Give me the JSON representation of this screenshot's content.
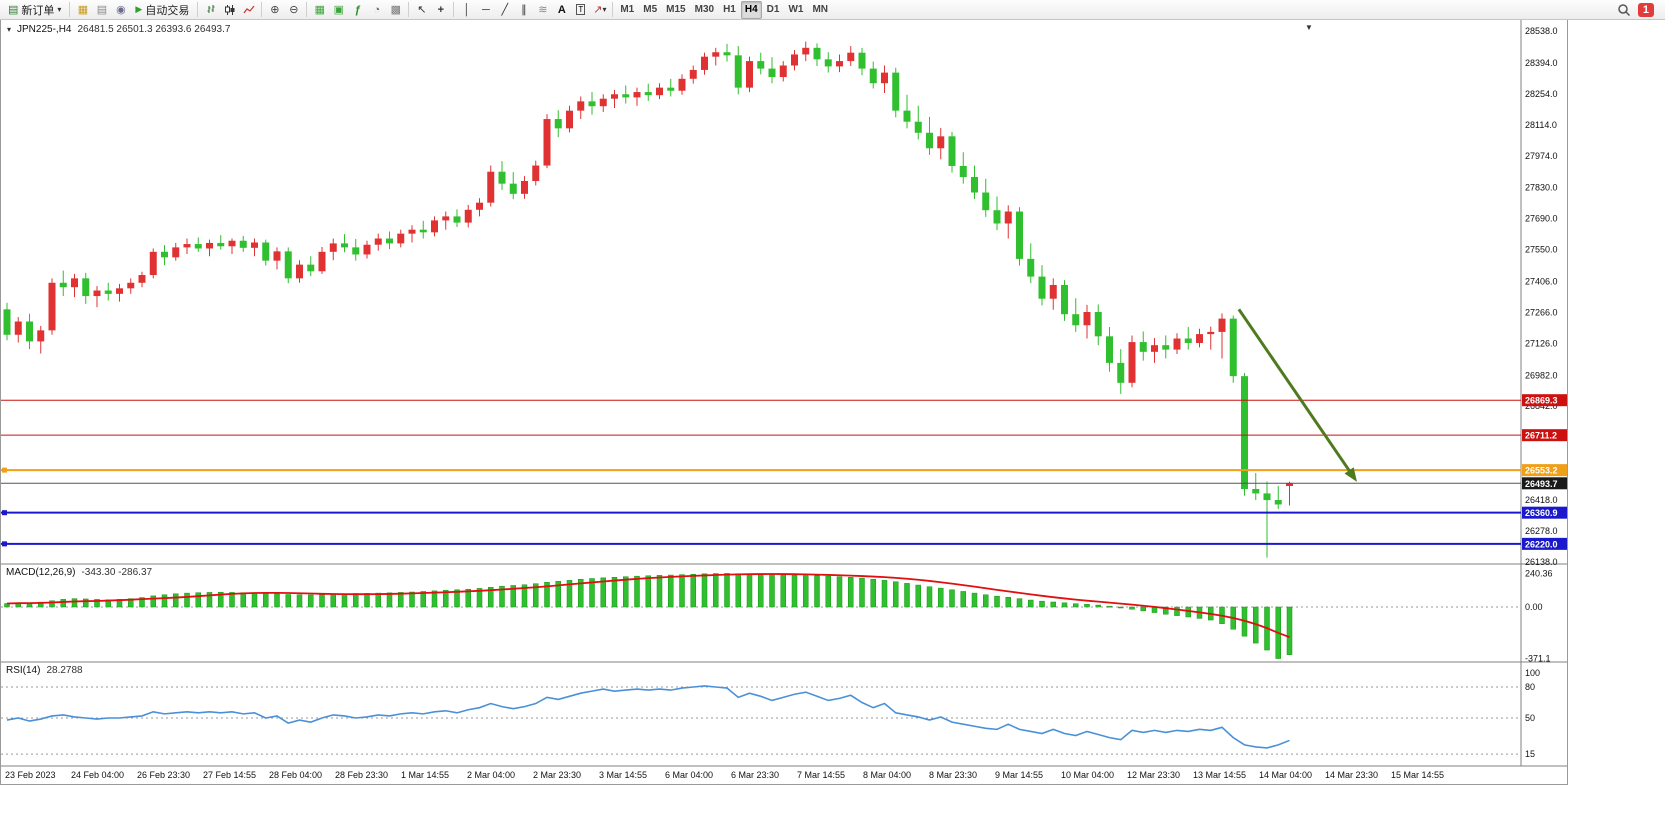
{
  "toolbar": {
    "new_order_label": "新订单",
    "autotrade_label": "自动交易",
    "timeframes": [
      "M1",
      "M5",
      "M15",
      "M30",
      "H1",
      "H4",
      "D1",
      "W1",
      "MN"
    ],
    "active_timeframe": "H4",
    "notification_count": "1"
  },
  "icons": {
    "symbol_menu": "▾",
    "chevron_down": "▾",
    "new_order": "▤",
    "charts_grid": "▦",
    "printer": "▤",
    "community": "◉",
    "autotrade_play": "▶",
    "zoom_in": "⊕",
    "zoom_out": "⊖",
    "arrange_windows": "▦",
    "tile_windows": "▣",
    "indicators": "ƒ",
    "periods": "◔",
    "template": "▩",
    "cursor": "↖",
    "crosshair": "+",
    "vline": "│",
    "hline": "─",
    "trendline": "╱",
    "channel": "∥",
    "fibonacci": "≋",
    "text": "A",
    "text_label": "T",
    "arrows_tool": "↗",
    "shift_marker": "▼"
  },
  "chart": {
    "title": "JPN225-,H4",
    "ohlc_text": "26481.5 26501.3 26393.6 26493.7",
    "macd_label": "MACD(12,26,9)",
    "macd_values_text": "-343.30 -286.37",
    "rsi_label": "RSI(14)",
    "rsi_value_text": "28.2788",
    "price_tags": [
      {
        "text": "26869.3",
        "price": 26869.3,
        "bg": "#cc1111"
      },
      {
        "text": "26711.2",
        "price": 26711.2,
        "bg": "#cc1111"
      },
      {
        "text": "26553.2",
        "price": 26553.2,
        "bg": "#efa018"
      },
      {
        "text": "26493.7",
        "price": 26493.7,
        "bg": "#1a1a1a"
      },
      {
        "text": "26360.9",
        "price": 26360.9,
        "bg": "#1a1acc"
      },
      {
        "text": "26220.0",
        "price": 26220.0,
        "bg": "#1a1acc"
      }
    ],
    "horizontal_lines": [
      {
        "price": 26869.3,
        "color": "#cc1111",
        "width": 1
      },
      {
        "price": 26711.2,
        "color": "#cc1111",
        "width": 1
      },
      {
        "price": 26553.2,
        "color": "#efa018",
        "width": 2
      },
      {
        "price": 26493.7,
        "color": "#555555",
        "width": 1
      },
      {
        "price": 26360.9,
        "color": "#1a1acc",
        "width": 2
      },
      {
        "price": 26220.0,
        "color": "#1a1acc",
        "width": 2
      }
    ],
    "macd_axis_labels": [
      {
        "text": "240.36",
        "value": 240.36
      },
      {
        "text": "0.00",
        "value": 0
      },
      {
        "text": "-371.1",
        "value": -371.1
      }
    ],
    "rsi_axis_labels": [
      {
        "text": "100",
        "value": 100
      },
      {
        "text": "80",
        "value": 80
      },
      {
        "text": "50",
        "value": 50
      },
      {
        "text": "15",
        "value": 15
      }
    ],
    "arrow": {
      "from": {
        "index": 109.5,
        "price": 27280
      },
      "to": {
        "index": 120,
        "price": 26500
      },
      "color": "#4f7a1f"
    },
    "colors": {
      "bull": "#e03232",
      "bear": "#2fbf2f",
      "macd_signal": "#e01010",
      "rsi": "#4a90d9"
    }
  },
  "chart_data": [
    {
      "type": "candlestick",
      "symbol": "JPN225-",
      "timeframe": "H4",
      "current_bar": {
        "open": 26481.5,
        "high": 26501.3,
        "low": 26393.6,
        "close": 26493.7
      },
      "ylim": [
        26138,
        28538
      ],
      "y_ticks": [
        "28538.0",
        "28394.0",
        "28254.0",
        "28114.0",
        "27974.0",
        "27830.0",
        "27690.0",
        "27550.0",
        "27406.0",
        "27266.0",
        "27126.0",
        "26982.0",
        "26842.0",
        "26418.0",
        "26278.0",
        "26138.0"
      ],
      "x_labels": [
        "23 Feb 2023",
        "24 Feb 04:00",
        "26 Feb 23:30",
        "27 Feb 14:55",
        "28 Feb 04:00",
        "28 Feb 23:30",
        "1 Mar 14:55",
        "2 Mar 04:00",
        "2 Mar 23:30",
        "3 Mar 14:55",
        "6 Mar 04:00",
        "6 Mar 23:30",
        "7 Mar 14:55",
        "8 Mar 04:00",
        "8 Mar 23:30",
        "9 Mar 14:55",
        "10 Mar 04:00",
        "12 Mar 23:30",
        "13 Mar 14:55",
        "14 Mar 04:00",
        "14 Mar 23:30",
        "15 Mar 14:55"
      ],
      "ohlc": [
        [
          27280,
          27310,
          27140,
          27165
        ],
        [
          27165,
          27245,
          27130,
          27225
        ],
        [
          27225,
          27260,
          27100,
          27135
        ],
        [
          27135,
          27205,
          27080,
          27185
        ],
        [
          27185,
          27420,
          27165,
          27400
        ],
        [
          27400,
          27455,
          27340,
          27380
        ],
        [
          27380,
          27440,
          27335,
          27420
        ],
        [
          27420,
          27445,
          27305,
          27340
        ],
        [
          27340,
          27385,
          27290,
          27365
        ],
        [
          27365,
          27400,
          27320,
          27350
        ],
        [
          27350,
          27395,
          27315,
          27375
        ],
        [
          27375,
          27420,
          27350,
          27400
        ],
        [
          27400,
          27450,
          27380,
          27435
        ],
        [
          27435,
          27555,
          27420,
          27540
        ],
        [
          27540,
          27570,
          27480,
          27515
        ],
        [
          27515,
          27580,
          27500,
          27560
        ],
        [
          27560,
          27600,
          27530,
          27575
        ],
        [
          27575,
          27605,
          27540,
          27555
        ],
        [
          27555,
          27595,
          27520,
          27580
        ],
        [
          27580,
          27615,
          27550,
          27565
        ],
        [
          27565,
          27600,
          27530,
          27590
        ],
        [
          27590,
          27612,
          27540,
          27558
        ],
        [
          27558,
          27600,
          27520,
          27582
        ],
        [
          27582,
          27595,
          27478,
          27500
        ],
        [
          27500,
          27560,
          27460,
          27542
        ],
        [
          27542,
          27560,
          27398,
          27420
        ],
        [
          27420,
          27502,
          27400,
          27482
        ],
        [
          27482,
          27520,
          27430,
          27452
        ],
        [
          27452,
          27562,
          27440,
          27540
        ],
        [
          27540,
          27600,
          27502,
          27578
        ],
        [
          27578,
          27620,
          27538,
          27560
        ],
        [
          27560,
          27598,
          27500,
          27528
        ],
        [
          27528,
          27590,
          27510,
          27572
        ],
        [
          27572,
          27622,
          27545,
          27600
        ],
        [
          27600,
          27632,
          27552,
          27578
        ],
        [
          27578,
          27640,
          27560,
          27622
        ],
        [
          27622,
          27660,
          27582,
          27640
        ],
        [
          27640,
          27680,
          27600,
          27628
        ],
        [
          27628,
          27700,
          27610,
          27682
        ],
        [
          27682,
          27722,
          27640,
          27700
        ],
        [
          27700,
          27732,
          27652,
          27672
        ],
        [
          27672,
          27752,
          27650,
          27730
        ],
        [
          27730,
          27782,
          27700,
          27762
        ],
        [
          27762,
          27930,
          27745,
          27902
        ],
        [
          27902,
          27950,
          27820,
          27848
        ],
        [
          27848,
          27900,
          27778,
          27802
        ],
        [
          27802,
          27882,
          27780,
          27860
        ],
        [
          27860,
          27952,
          27840,
          27930
        ],
        [
          27930,
          28162,
          27918,
          28140
        ],
        [
          28140,
          28180,
          28058,
          28098
        ],
        [
          28098,
          28200,
          28080,
          28178
        ],
        [
          28178,
          28242,
          28140,
          28220
        ],
        [
          28220,
          28262,
          28160,
          28198
        ],
        [
          28198,
          28252,
          28172,
          28232
        ],
        [
          28232,
          28272,
          28190,
          28252
        ],
        [
          28252,
          28292,
          28210,
          28238
        ],
        [
          28238,
          28282,
          28200,
          28262
        ],
        [
          28262,
          28300,
          28222,
          28248
        ],
        [
          28248,
          28302,
          28230,
          28282
        ],
        [
          28282,
          28322,
          28242,
          28268
        ],
        [
          28268,
          28342,
          28250,
          28322
        ],
        [
          28322,
          28382,
          28300,
          28362
        ],
        [
          28362,
          28440,
          28340,
          28422
        ],
        [
          28422,
          28462,
          28382,
          28442
        ],
        [
          28442,
          28480,
          28400,
          28428
        ],
        [
          28428,
          28470,
          28252,
          28282
        ],
        [
          28282,
          28422,
          28262,
          28402
        ],
        [
          28402,
          28440,
          28342,
          28368
        ],
        [
          28368,
          28420,
          28302,
          28330
        ],
        [
          28330,
          28402,
          28310,
          28382
        ],
        [
          28382,
          28452,
          28360,
          28432
        ],
        [
          28432,
          28490,
          28402,
          28462
        ],
        [
          28462,
          28482,
          28380,
          28410
        ],
        [
          28410,
          28442,
          28350,
          28378
        ],
        [
          28378,
          28432,
          28352,
          28402
        ],
        [
          28402,
          28470,
          28380,
          28440
        ],
        [
          28440,
          28462,
          28338,
          28368
        ],
        [
          28368,
          28400,
          28278,
          28302
        ],
        [
          28302,
          28382,
          28258,
          28350
        ],
        [
          28350,
          28372,
          28148,
          28178
        ],
        [
          28178,
          28250,
          28098,
          28128
        ],
        [
          28128,
          28200,
          28048,
          28078
        ],
        [
          28078,
          28150,
          27978,
          28008
        ],
        [
          28008,
          28100,
          27958,
          28062
        ],
        [
          28062,
          28082,
          27898,
          27928
        ],
        [
          27928,
          27990,
          27848,
          27878
        ],
        [
          27878,
          27930,
          27778,
          27808
        ],
        [
          27808,
          27870,
          27698,
          27728
        ],
        [
          27728,
          27790,
          27638,
          27668
        ],
        [
          27668,
          27750,
          27600,
          27722
        ],
        [
          27722,
          27742,
          27478,
          27508
        ],
        [
          27508,
          27578,
          27398,
          27428
        ],
        [
          27428,
          27480,
          27298,
          27328
        ],
        [
          27328,
          27420,
          27278,
          27390
        ],
        [
          27390,
          27412,
          27228,
          27258
        ],
        [
          27258,
          27330,
          27178,
          27208
        ],
        [
          27208,
          27300,
          27148,
          27268
        ],
        [
          27268,
          27302,
          27118,
          27158
        ],
        [
          27158,
          27200,
          26998,
          27038
        ],
        [
          27038,
          27100,
          26898,
          26948
        ],
        [
          26948,
          27162,
          26928,
          27132
        ],
        [
          27132,
          27180,
          27048,
          27088
        ],
        [
          27088,
          27150,
          27038,
          27118
        ],
        [
          27118,
          27162,
          27058,
          27098
        ],
        [
          27098,
          27172,
          27078,
          27148
        ],
        [
          27148,
          27200,
          27098,
          27128
        ],
        [
          27128,
          27192,
          27108,
          27168
        ],
        [
          27168,
          27202,
          27098,
          27178
        ],
        [
          27178,
          27262,
          27058,
          27238
        ],
        [
          27238,
          27252,
          26948,
          26978
        ],
        [
          26978,
          26992,
          26438,
          26468
        ],
        [
          26468,
          26540,
          26418,
          26448
        ],
        [
          26448,
          26502,
          26158,
          26418
        ],
        [
          26418,
          26482,
          26378,
          26398
        ],
        [
          26481.5,
          26501.3,
          26393.6,
          26493.7
        ]
      ]
    },
    {
      "type": "bar",
      "title": "MACD(12,26,9)",
      "ylim": [
        -371.1,
        240.36
      ],
      "last_main": -343.3,
      "last_signal": -286.37,
      "values": [
        25,
        30,
        28,
        35,
        45,
        55,
        60,
        58,
        55,
        52,
        55,
        60,
        68,
        80,
        88,
        95,
        100,
        103,
        105,
        106,
        105,
        103,
        102,
        98,
        95,
        90,
        88,
        87,
        88,
        92,
        95,
        97,
        98,
        100,
        102,
        105,
        108,
        112,
        116,
        120,
        124,
        128,
        134,
        142,
        150,
        155,
        160,
        168,
        178,
        185,
        192,
        200,
        205,
        210,
        214,
        218,
        222,
        225,
        228,
        230,
        233,
        236,
        239,
        241,
        242,
        240,
        238,
        236,
        233,
        230,
        228,
        227,
        225,
        222,
        218,
        214,
        208,
        200,
        192,
        182,
        170,
        158,
        146,
        136,
        124,
        112,
        100,
        88,
        78,
        70,
        60,
        50,
        42,
        36,
        30,
        24,
        20,
        14,
        6,
        -4,
        -16,
        -28,
        -40,
        -52,
        -62,
        -72,
        -82,
        -94,
        -120,
        -160,
        -210,
        -260,
        -310,
        -371.1,
        -343.3
      ]
    },
    {
      "type": "line",
      "title": "RSI(14)",
      "ylim": [
        0,
        100
      ],
      "levels": [
        80,
        50,
        15
      ],
      "last": 28.2788,
      "values": [
        48,
        50,
        47,
        49,
        52,
        53,
        51,
        50,
        49,
        50,
        50,
        51,
        52,
        56,
        54,
        55,
        56,
        55,
        56,
        55,
        56,
        54,
        55,
        50,
        52,
        45,
        48,
        46,
        50,
        53,
        52,
        50,
        51,
        53,
        52,
        54,
        55,
        54,
        56,
        57,
        55,
        58,
        60,
        64,
        61,
        59,
        61,
        64,
        70,
        68,
        71,
        74,
        76,
        78,
        76,
        77,
        78,
        77,
        78,
        77,
        79,
        80,
        81,
        80,
        79,
        70,
        74,
        71,
        67,
        70,
        73,
        75,
        71,
        67,
        69,
        72,
        65,
        60,
        64,
        55,
        53,
        51,
        48,
        51,
        46,
        44,
        42,
        40,
        39,
        44,
        39,
        37,
        35,
        39,
        35,
        33,
        37,
        34,
        31,
        29,
        38,
        36,
        38,
        36,
        38,
        37,
        39,
        38,
        41,
        31,
        24,
        22,
        21,
        24,
        28.28
      ]
    }
  ]
}
